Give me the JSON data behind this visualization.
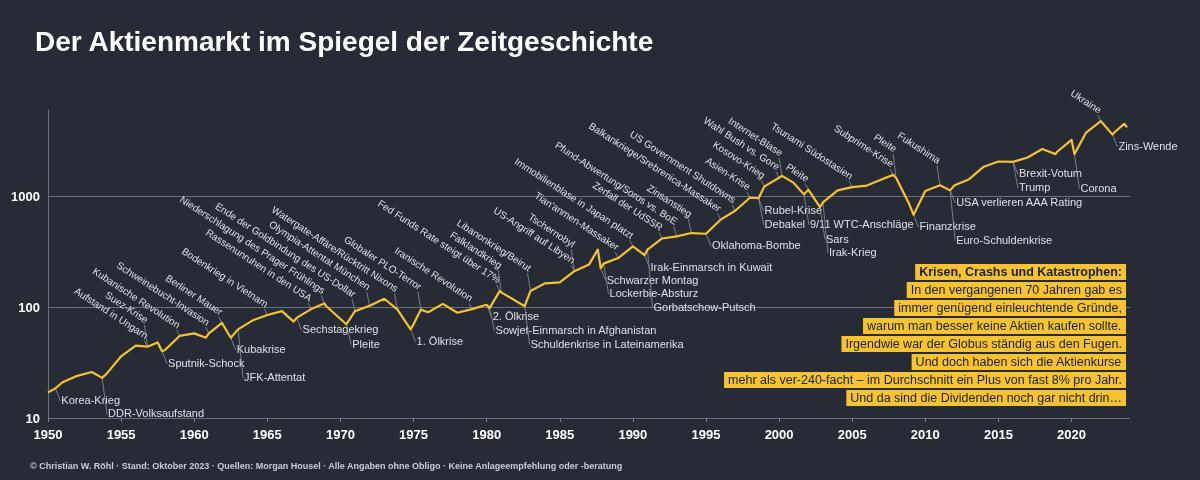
{
  "chart_data": {
    "type": "line",
    "title": "Der Aktienmarkt im Spiegel der Zeitgeschichte",
    "x": [
      1950,
      1950.5,
      1951,
      1952,
      1953,
      1953.7,
      1954,
      1955,
      1956,
      1956.8,
      1957.5,
      1957.8,
      1958,
      1959,
      1960,
      1960.8,
      1961,
      1961.9,
      1962.5,
      1963,
      1964,
      1965,
      1966,
      1966.8,
      1967,
      1968,
      1968.9,
      1969,
      1970.4,
      1971,
      1972,
      1973,
      1973.9,
      1974.8,
      1975,
      1975.5,
      1976,
      1977,
      1978,
      1979,
      1980,
      1980.2,
      1980.9,
      1981,
      1982.6,
      1983,
      1984,
      1985,
      1986,
      1987,
      1987.6,
      1987.8,
      1988,
      1989,
      1990,
      1990.8,
      1991,
      1992,
      1993,
      1994,
      1995,
      1996,
      1997,
      1998,
      1998.6,
      1999,
      2000,
      2000.2,
      2001,
      2001.7,
      2002,
      2002.8,
      2003,
      2004,
      2005,
      2006,
      2007,
      2007.8,
      2008,
      2008.9,
      2009.2,
      2010,
      2011,
      2011.7,
      2012,
      2013,
      2014,
      2015,
      2016,
      2017,
      2018,
      2018.9,
      2019,
      2020,
      2020.2,
      2021,
      2022,
      2022.8,
      2023,
      2023.6,
      2023.8
    ],
    "series": [
      {
        "color": "#f5c232",
        "values": [
          17,
          18.5,
          21,
          24,
          26,
          23,
          25,
          36,
          45,
          44,
          48,
          40,
          41,
          55,
          58,
          53,
          58,
          72,
          53,
          63,
          76,
          85,
          92,
          74,
          80,
          96,
          108,
          103,
          70,
          92,
          103,
          119,
          95,
          63,
          70,
          95,
          90,
          107,
          89,
          96,
          105,
          98,
          140,
          136,
          102,
          140,
          164,
          167,
          211,
          242,
          330,
          225,
          247,
          277,
          353,
          295,
          330,
          416,
          435,
          466,
          459,
          615,
          740,
          970,
          960,
          1229,
          1469,
          1527,
          1320,
          1040,
          1148,
          800,
          880,
          1131,
          1211,
          1248,
          1418,
          1560,
          1468,
          850,
          680,
          1115,
          1257,
          1130,
          1258,
          1426,
          1848,
          2058,
          2043,
          2238,
          2673,
          2400,
          2507,
          3230,
          2400,
          3756,
          4766,
          3600,
          3840,
          4500,
          4200
        ]
      }
    ],
    "xlim": [
      1950,
      2024
    ],
    "ylim": [
      10,
      6000
    ],
    "xticks": [
      1950,
      1955,
      1960,
      1965,
      1970,
      1975,
      1980,
      1985,
      1990,
      1995,
      2000,
      2005,
      2010,
      2015,
      2020
    ],
    "yticks": [
      10,
      100,
      1000
    ],
    "log": true,
    "grid": "y",
    "marker": "none",
    "annotations": [
      {
        "text": "Korea-Krieg",
        "x": 1950.5,
        "y": 18.5
      },
      {
        "text": "DDR-Volksaufstand",
        "x": 1953.7,
        "y": 23
      },
      {
        "text": "Aufstand in Ungarn",
        "x": 1956.8,
        "y": 44
      },
      {
        "text": "Suez-Krise",
        "x": 1956.8,
        "y": 44
      },
      {
        "text": "Sputnik-Schock",
        "x": 1957.8,
        "y": 40
      },
      {
        "text": "Kubanische Revolution",
        "x": 1959,
        "y": 55
      },
      {
        "text": "Schweinebucht-Invasion",
        "x": 1961,
        "y": 58
      },
      {
        "text": "Berliner Mauer",
        "x": 1961.9,
        "y": 72
      },
      {
        "text": "Kubakrise",
        "x": 1962.5,
        "y": 53
      },
      {
        "text": "JFK-Attentat",
        "x": 1963,
        "y": 63
      },
      {
        "text": "Bodenkrieg in Vietnam",
        "x": 1965,
        "y": 85
      },
      {
        "text": "Sechstagekrieg",
        "x": 1967,
        "y": 80
      },
      {
        "text": "Rassenunruhen in den USA",
        "x": 1968,
        "y": 96
      },
      {
        "text": "Niederschlagung des Prager Frühlings",
        "x": 1968.9,
        "y": 108
      },
      {
        "text": "Pleite",
        "x": 1970.4,
        "y": 70
      },
      {
        "text": "Ende der Goldbindung des US-Dollar",
        "x": 1971,
        "y": 92
      },
      {
        "text": "Olympia-Attentat München",
        "x": 1972,
        "y": 103
      },
      {
        "text": "Watergate-Affäre/Rücktritt Nixons",
        "x": 1973.9,
        "y": 95
      },
      {
        "text": "1. Ölkrise",
        "x": 1974.8,
        "y": 63
      },
      {
        "text": "Globaler PLO-Terror",
        "x": 1975.5,
        "y": 95
      },
      {
        "text": "Iranische Revolution",
        "x": 1979,
        "y": 96
      },
      {
        "text": "2. Ölkrise",
        "x": 1980,
        "y": 105
      },
      {
        "text": "Sowjet-Einmarsch in Afghanistan",
        "x": 1980.2,
        "y": 98
      },
      {
        "text": "Fed Funds Rate steigt über 17%",
        "x": 1980.9,
        "y": 140
      },
      {
        "text": "Falklandkrieg",
        "x": 1981,
        "y": 136
      },
      {
        "text": "Libanonkrieg/Beirut",
        "x": 1983,
        "y": 140
      },
      {
        "text": "Schuldenkrise in Lateinamerika",
        "x": 1982.6,
        "y": 102
      },
      {
        "text": "US-Angriff auf Libyen",
        "x": 1986,
        "y": 211
      },
      {
        "text": "Tschernobyl",
        "x": 1986,
        "y": 211
      },
      {
        "text": "Schwarzer Montag",
        "x": 1987.8,
        "y": 225
      },
      {
        "text": "Lockerbie-Absturz",
        "x": 1988,
        "y": 247
      },
      {
        "text": "Tian'anmen-Massaker",
        "x": 1989,
        "y": 277
      },
      {
        "text": "Immobilienblase in Japan platzt",
        "x": 1990,
        "y": 353
      },
      {
        "text": "Irak-Einmarsch in Kuwait",
        "x": 1990.8,
        "y": 295
      },
      {
        "text": "Gorbatschow-Putsch",
        "x": 1991,
        "y": 330
      },
      {
        "text": "Zerfall der UdSSR",
        "x": 1992,
        "y": 416
      },
      {
        "text": "Pfund-Abwertung/Soros vs. BoE",
        "x": 1993,
        "y": 435
      },
      {
        "text": "Zinsanstieg",
        "x": 1994,
        "y": 466
      },
      {
        "text": "Oklahoma-Bombe",
        "x": 1995,
        "y": 459
      },
      {
        "text": "Balkankriege/Srebrenica-Massaker",
        "x": 1996,
        "y": 615
      },
      {
        "text": "US Government Shutdowns",
        "x": 1997,
        "y": 740
      },
      {
        "text": "Asien-Krise",
        "x": 1998,
        "y": 970
      },
      {
        "text": "Rubel-Krise",
        "x": 1998.6,
        "y": 960
      },
      {
        "text": "Debakel",
        "x": 1998.6,
        "y": 960
      },
      {
        "text": "Kosovo-Krieg",
        "x": 1999,
        "y": 1229
      },
      {
        "text": "Internet-Blase",
        "x": 2000.2,
        "y": 1527
      },
      {
        "text": "Wahl Bush vs. Gore",
        "x": 2000,
        "y": 1469
      },
      {
        "text": "9/11 WTC-Anschläge",
        "x": 2001.7,
        "y": 1040
      },
      {
        "text": "Pleite",
        "x": 2002,
        "y": 1148
      },
      {
        "text": "Sars",
        "x": 2002.8,
        "y": 800
      },
      {
        "text": "Irak-Krieg",
        "x": 2003,
        "y": 880
      },
      {
        "text": "Tsunami Südostasien",
        "x": 2005,
        "y": 1211
      },
      {
        "text": "Subprime-Krise",
        "x": 2007.8,
        "y": 1560
      },
      {
        "text": "Pleite",
        "x": 2008,
        "y": 1468
      },
      {
        "text": "Finanzkrise",
        "x": 2009.2,
        "y": 680
      },
      {
        "text": "Fukushima",
        "x": 2011,
        "y": 1257
      },
      {
        "text": "USA verlieren AAA Rating",
        "x": 2011.7,
        "y": 1130
      },
      {
        "text": "Euro-Schuldenkrise",
        "x": 2011.7,
        "y": 1130
      },
      {
        "text": "Brexit-Votum",
        "x": 2016,
        "y": 2043
      },
      {
        "text": "Trump",
        "x": 2016,
        "y": 2043
      },
      {
        "text": "Corona",
        "x": 2020.2,
        "y": 2400
      },
      {
        "text": "Ukraine",
        "x": 2022,
        "y": 4766
      },
      {
        "text": "Zins-Wende",
        "x": 2022.8,
        "y": 3600
      },
      "Krisen, Crashs und Katastrophen:",
      "In den vergangenen 70 Jahren gab es",
      "immer genügend einleuchtende Gründe,",
      "warum man besser keine Aktien kaufen sollte.",
      "Irgendwie war der Globus ständig aus den Fugen.",
      "Und doch haben sich die Aktienkurse",
      "mehr als ver-240-facht – im Durchschnitt ein Plus von fast 8% pro Jahr.",
      "Und da sind die Dividenden noch gar nicht drin…",
      "© Christian W. Röhl · Stand: Oktober 2023 · Quellen: Morgan Housel · Alle Angaben ohne Obligo · Keine Anlageempfehlung oder -beratung"
    ]
  }
}
